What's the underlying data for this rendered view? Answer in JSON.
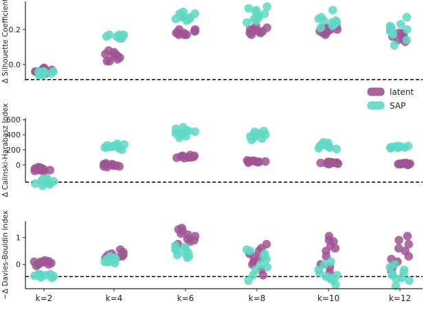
{
  "chart_data": {
    "type": "scatter",
    "categories": [
      "k=2",
      "k=4",
      "k=6",
      "k=8",
      "k=10",
      "k=12"
    ],
    "legend": {
      "position": "right, between top and middle panels",
      "entries": [
        {
          "name": "latent",
          "color": "#a05594"
        },
        {
          "name": "SAP",
          "color": "#5fd8c4"
        }
      ]
    },
    "colors": {
      "latent": "#a05594",
      "SAP": "#5fd8c4"
    },
    "panels": [
      {
        "ylabel": "Δ Silhouette Coefficient",
        "ylim": [
          -0.09,
          0.36
        ],
        "yticks": [
          0.0,
          0.2
        ],
        "ytick_labels": [
          "0.0",
          "0.2"
        ],
        "baseline": -0.085,
        "series": [
          {
            "name": "latent",
            "values": [
              [
                -0.02,
                -0.03,
                -0.04,
                -0.05,
                -0.03,
                -0.02,
                -0.04,
                -0.03,
                -0.05,
                -0.03
              ],
              [
                0.02,
                0.04,
                0.05,
                0.06,
                0.07,
                0.08,
                0.03,
                0.02,
                0.06,
                0.05
              ],
              [
                0.17,
                0.18,
                0.19,
                0.2,
                0.18,
                0.17,
                0.19,
                0.2,
                0.18,
                0.17
              ],
              [
                0.18,
                0.19,
                0.2,
                0.21,
                0.22,
                0.17,
                0.19,
                0.2,
                0.18,
                0.19
              ],
              [
                0.17,
                0.18,
                0.19,
                0.2,
                0.21,
                0.22,
                0.19,
                0.18,
                0.2,
                0.21
              ],
              [
                0.13,
                0.15,
                0.16,
                0.17,
                0.18,
                0.19,
                0.2,
                0.14,
                0.16,
                0.18
              ]
            ]
          },
          {
            "name": "SAP",
            "values": [
              [
                -0.04,
                -0.05,
                -0.05,
                -0.04,
                -0.06,
                -0.05,
                -0.04,
                -0.05,
                -0.06,
                -0.04
              ],
              [
                0.15,
                0.16,
                0.17,
                0.16,
                0.15,
                0.17,
                0.16,
                0.15,
                0.17,
                0.16
              ],
              [
                0.25,
                0.26,
                0.27,
                0.28,
                0.29,
                0.3,
                0.26,
                0.27,
                0.28,
                0.29
              ],
              [
                0.24,
                0.26,
                0.28,
                0.3,
                0.32,
                0.33,
                0.31,
                0.29,
                0.27,
                0.25
              ],
              [
                0.21,
                0.23,
                0.24,
                0.25,
                0.26,
                0.27,
                0.31,
                0.22,
                0.24,
                0.25
              ],
              [
                0.11,
                0.14,
                0.17,
                0.19,
                0.21,
                0.22,
                0.23,
                0.27,
                0.2,
                0.18
              ]
            ]
          }
        ]
      },
      {
        "ylabel": "Δ Calinski-Harabasz Index",
        "ylim": [
          -230,
          620
        ],
        "yticks": [
          0,
          200,
          400,
          600
        ],
        "ytick_labels": [
          "0",
          "200",
          "400",
          "600"
        ],
        "baseline": -230,
        "series": [
          {
            "name": "latent",
            "values": [
              [
                -90,
                -80,
                -70,
                -60,
                -50,
                -40,
                -30,
                -60,
                -70,
                -50
              ],
              [
                -30,
                -20,
                -10,
                0,
                10,
                20,
                -10,
                0,
                10,
                -20
              ],
              [
                90,
                100,
                110,
                120,
                130,
                100,
                110,
                120,
                95,
                105
              ],
              [
                30,
                40,
                50,
                55,
                60,
                40,
                45,
                50,
                35,
                45
              ],
              [
                10,
                20,
                25,
                30,
                35,
                40,
                20,
                25,
                30,
                15
              ],
              [
                0,
                10,
                15,
                20,
                25,
                5,
                10,
                15,
                20,
                5
              ]
            ]
          },
          {
            "name": "SAP",
            "values": [
              [
                -280,
                -250,
                -220,
                -200,
                -180,
                -210,
                -240,
                -260,
                -230,
                -190
              ],
              [
                200,
                220,
                230,
                240,
                250,
                270,
                280,
                230,
                250,
                260
              ],
              [
                360,
                380,
                400,
                420,
                440,
                460,
                480,
                500,
                420,
                450
              ],
              [
                330,
                350,
                370,
                400,
                420,
                440,
                450,
                380,
                360,
                410
              ],
              [
                210,
                230,
                250,
                270,
                290,
                300,
                260,
                240,
                280,
                220
              ],
              [
                220,
                230,
                240,
                245,
                250,
                235,
                225,
                240,
                250,
                230
              ]
            ]
          }
        ]
      },
      {
        "ylabel": "−Δ Davies-Bouldin Index",
        "ylim": [
          -0.9,
          1.6
        ],
        "yticks": [
          0,
          1
        ],
        "ytick_labels": [
          "0",
          "1"
        ],
        "baseline": -0.45,
        "series": [
          {
            "name": "latent",
            "values": [
              [
                -0.05,
                0.0,
                0.05,
                0.1,
                0.15,
                0.05,
                0.1,
                0.0,
                0.12,
                0.08
              ],
              [
                0.2,
                0.25,
                0.3,
                0.35,
                0.4,
                0.45,
                0.55,
                0.3,
                0.25,
                0.35
              ],
              [
                0.75,
                0.85,
                0.95,
                1.05,
                1.15,
                1.25,
                1.35,
                1.3,
                0.9,
                1.1
              ],
              [
                -0.4,
                -0.2,
                0.0,
                0.2,
                0.4,
                0.6,
                0.75,
                0.5,
                0.3,
                0.1
              ],
              [
                -0.3,
                -0.1,
                0.0,
                0.3,
                0.6,
                0.85,
                0.9,
                1.05,
                0.7,
                0.5
              ],
              [
                -0.25,
                -0.1,
                0.1,
                0.3,
                0.5,
                0.75,
                0.9,
                1.05,
                0.6,
                0.2
              ]
            ]
          },
          {
            "name": "SAP",
            "values": [
              [
                -0.5,
                -0.45,
                -0.4,
                -0.35,
                -0.42,
                -0.38,
                -0.48,
                -0.44,
                -0.36,
                -0.4
              ],
              [
                0.05,
                0.1,
                0.15,
                0.2,
                0.25,
                0.3,
                0.12,
                0.18,
                0.22,
                0.08
              ],
              [
                0.25,
                0.3,
                0.4,
                0.5,
                0.55,
                0.6,
                0.65,
                0.7,
                0.45,
                0.35
              ],
              [
                -0.6,
                -0.4,
                -0.2,
                0.0,
                0.2,
                0.4,
                0.5,
                0.55,
                0.3,
                -0.1
              ],
              [
                -0.75,
                -0.6,
                -0.5,
                -0.4,
                -0.2,
                0.0,
                0.1,
                -0.3,
                -0.55,
                -0.45
              ],
              [
                -0.8,
                -0.6,
                -0.5,
                -0.4,
                -0.3,
                -0.2,
                -0.1,
                0.0,
                -0.35,
                -0.55
              ]
            ]
          }
        ]
      }
    ]
  }
}
